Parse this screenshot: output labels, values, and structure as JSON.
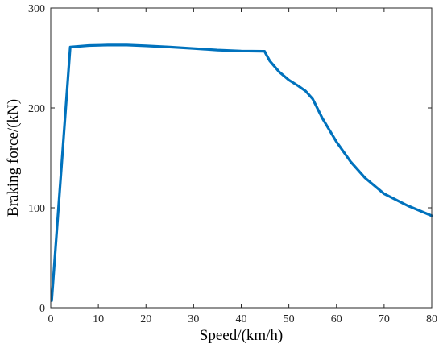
{
  "chart_data": {
    "type": "line",
    "title": "",
    "xlabel": "Speed/(km/h)",
    "ylabel": "Braking force/(kN)",
    "xlim": [
      0,
      80
    ],
    "ylim": [
      0,
      300
    ],
    "x_ticks": [
      0,
      10,
      20,
      30,
      40,
      50,
      60,
      70,
      80
    ],
    "y_ticks": [
      0,
      100,
      200,
      300
    ],
    "grid": false,
    "box": true,
    "series": [
      {
        "color": "#0072BD",
        "x": [
          0.2,
          4.1,
          8,
          12,
          16,
          20,
          25,
          30,
          35,
          40,
          44.5,
          44.9,
          45.2,
          46,
          48,
          50,
          52,
          53.5,
          55,
          57,
          60,
          63,
          66,
          70,
          75,
          80
        ],
        "y": [
          7,
          261,
          262.5,
          263,
          263,
          262.2,
          261,
          259.5,
          258,
          257,
          256.8,
          256.8,
          254,
          247,
          236,
          228,
          222,
          217,
          209,
          190,
          166,
          146,
          130,
          114,
          102,
          92
        ]
      }
    ]
  }
}
